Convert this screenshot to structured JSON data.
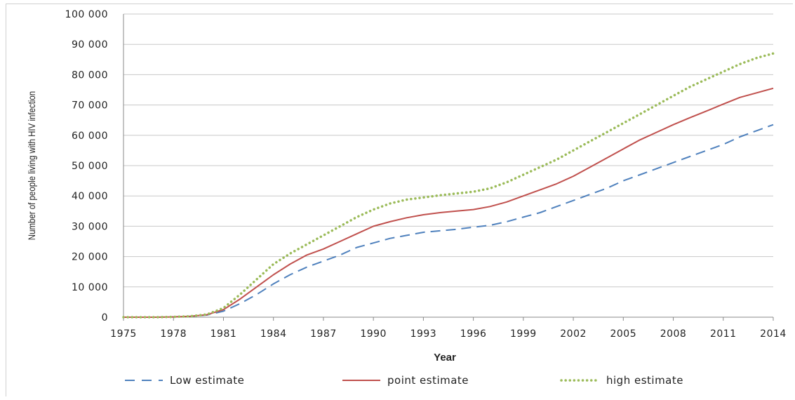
{
  "chart_data": {
    "type": "line",
    "xlabel": "Year",
    "ylabel": "Number of people living with HIV infection",
    "ylim": [
      0,
      100000
    ],
    "y_ticks": [
      "0",
      "10 000",
      "20 000",
      "30 000",
      "40 000",
      "50 000",
      "60 000",
      "70 000",
      "80 000",
      "90 000",
      "100 000"
    ],
    "x_range": [
      1975,
      2014
    ],
    "x_ticks": [
      "1975",
      "1978",
      "1981",
      "1984",
      "1987",
      "1990",
      "1993",
      "1996",
      "1999",
      "2002",
      "2005",
      "2008",
      "2011",
      "2014"
    ],
    "grid": "horizontal",
    "legend_position": "bottom",
    "x": [
      1975,
      1976,
      1977,
      1978,
      1979,
      1980,
      1981,
      1982,
      1983,
      1984,
      1985,
      1986,
      1987,
      1988,
      1989,
      1990,
      1991,
      1992,
      1993,
      1994,
      1995,
      1996,
      1997,
      1998,
      1999,
      2000,
      2001,
      2002,
      2003,
      2004,
      2005,
      2006,
      2007,
      2008,
      2009,
      2010,
      2011,
      2012,
      2013,
      2014
    ],
    "series": [
      {
        "name": "Low estimate",
        "color": "#4f81bd",
        "style": "dashed",
        "values": [
          0,
          0,
          0,
          100,
          300,
          700,
          2000,
          4500,
          7500,
          11000,
          14000,
          16500,
          18500,
          20500,
          23000,
          24500,
          26000,
          27000,
          28000,
          28500,
          29000,
          29700,
          30300,
          31500,
          33000,
          34500,
          36500,
          38500,
          40500,
          42500,
          45000,
          47000,
          49000,
          51000,
          53000,
          55000,
          57000,
          59500,
          61500,
          63500
        ]
      },
      {
        "name": "point estimate",
        "color": "#c0504d",
        "style": "solid",
        "values": [
          0,
          0,
          0,
          100,
          300,
          800,
          2500,
          6000,
          10000,
          14000,
          17500,
          20500,
          22500,
          25000,
          27500,
          30000,
          31500,
          32800,
          33800,
          34500,
          35000,
          35500,
          36500,
          38000,
          40000,
          42000,
          44000,
          46500,
          49500,
          52500,
          55500,
          58500,
          61000,
          63500,
          65800,
          68000,
          70300,
          72500,
          74000,
          75500
        ]
      },
      {
        "name": "high estimate",
        "color": "#9bbb59",
        "style": "dotted",
        "values": [
          0,
          0,
          0,
          100,
          300,
          900,
          3000,
          7500,
          12500,
          17500,
          21000,
          24000,
          27000,
          30000,
          33000,
          35500,
          37500,
          38800,
          39500,
          40200,
          40800,
          41400,
          42500,
          44500,
          47000,
          49500,
          52000,
          55000,
          58000,
          61000,
          64000,
          67000,
          70000,
          73000,
          76000,
          78500,
          81000,
          83500,
          85500,
          87000
        ]
      }
    ]
  }
}
